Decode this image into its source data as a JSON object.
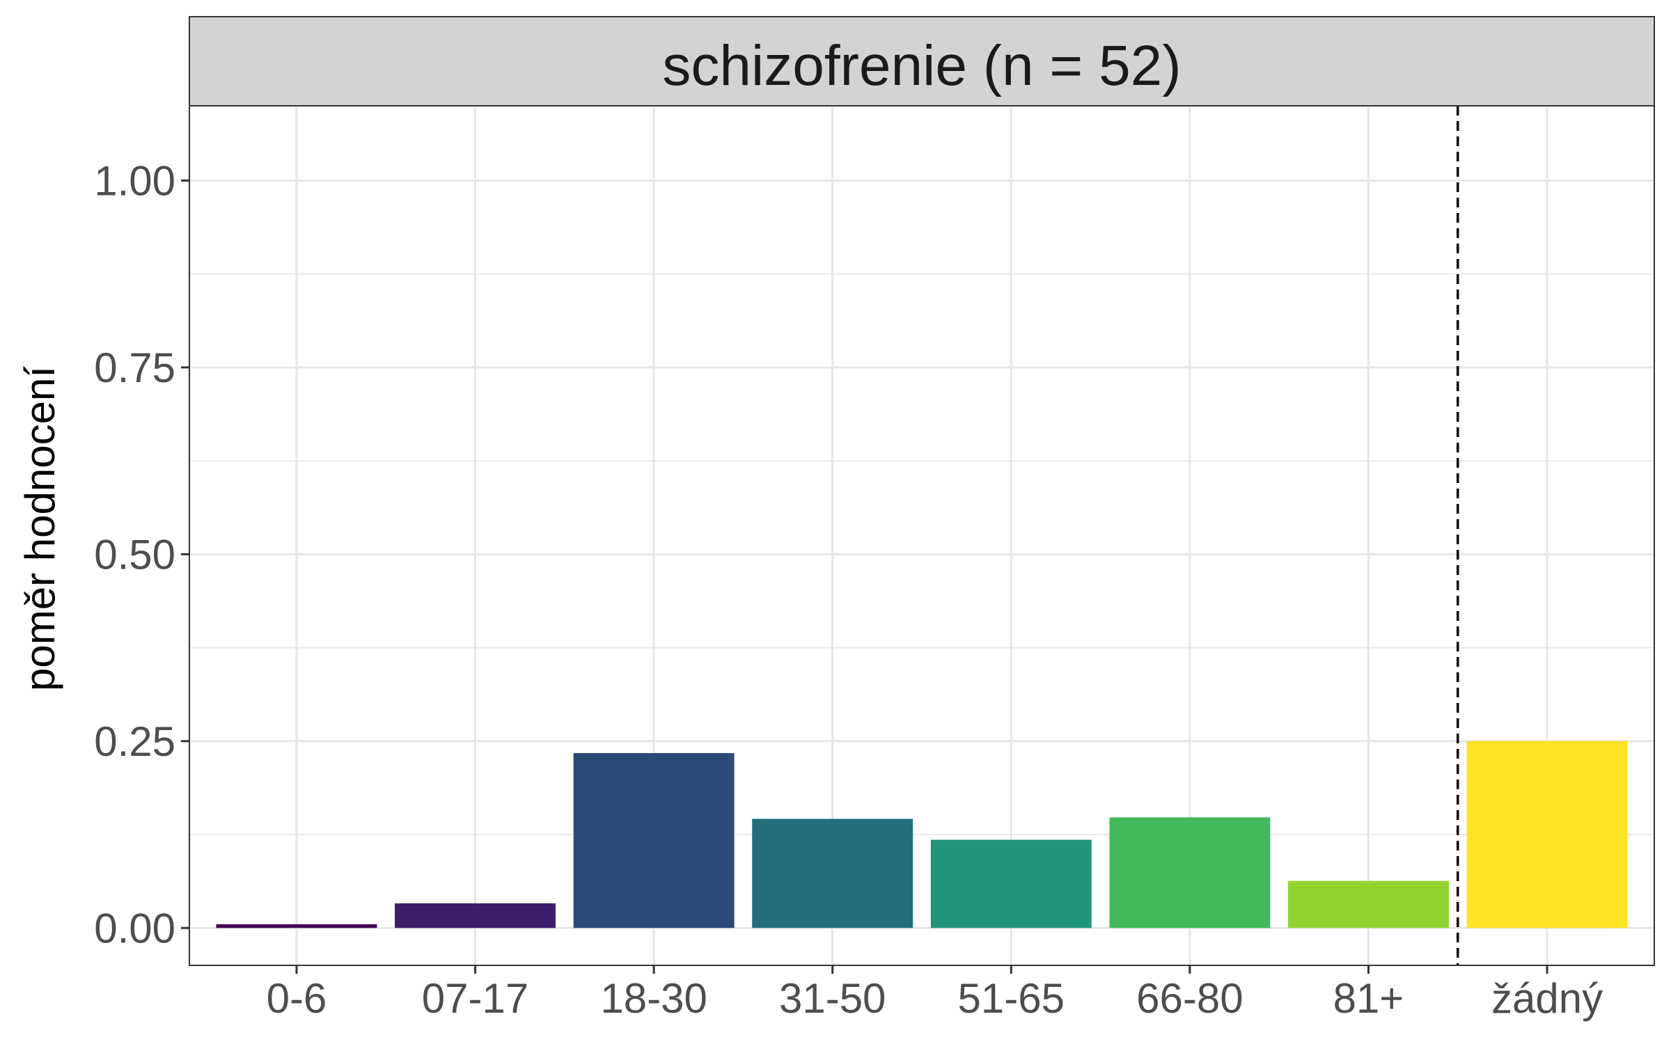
{
  "chart_data": {
    "type": "bar",
    "facet_title": "schizofrenie (n = 52)",
    "ylabel": "poměr hodnocení",
    "xlabel": "",
    "categories": [
      "0-6",
      "07-17",
      "18-30",
      "31-50",
      "51-65",
      "66-80",
      "81+",
      "žádný"
    ],
    "values": [
      0.005,
      0.033,
      0.234,
      0.146,
      0.118,
      0.148,
      0.063,
      0.25
    ],
    "colors": [
      "#440154",
      "#3B1F6B",
      "#2C4A78",
      "#216F7C",
      "#21957A",
      "#43B95A",
      "#92D52F",
      "#FDE225"
    ],
    "ylim": [
      -0.05,
      1.1
    ],
    "yticks": [
      0.0,
      0.25,
      0.5,
      0.75,
      1.0
    ],
    "ytick_labels": [
      "0.00",
      "0.25",
      "0.50",
      "0.75",
      "1.00"
    ],
    "reference_line": {
      "between_categories": [
        "81+",
        "žádný"
      ],
      "style": "dashed"
    },
    "grid": true,
    "theme": "bw"
  }
}
